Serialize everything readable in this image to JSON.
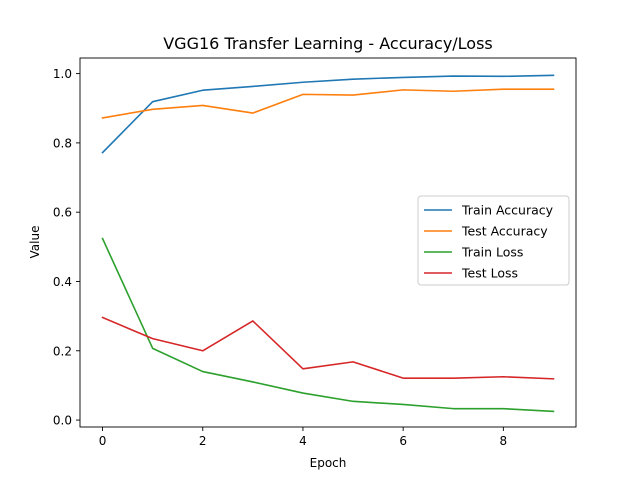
{
  "chart_data": {
    "type": "line",
    "title": "VGG16 Transfer Learning - Accuracy/Loss",
    "xlabel": "Epoch",
    "ylabel": "Value",
    "x": [
      0,
      1,
      2,
      3,
      4,
      5,
      6,
      7,
      8,
      9
    ],
    "xlim": [
      -0.45,
      9.45
    ],
    "ylim": [
      -0.02,
      1.045
    ],
    "xticks": [
      0,
      2,
      4,
      6,
      8
    ],
    "yticks": [
      0.0,
      0.2,
      0.4,
      0.6,
      0.8,
      1.0
    ],
    "xtick_labels": [
      "0",
      "2",
      "4",
      "6",
      "8"
    ],
    "ytick_labels": [
      "0.0",
      "0.2",
      "0.4",
      "0.6",
      "0.8",
      "1.0"
    ],
    "grid": false,
    "legend_position": "center-right",
    "series": [
      {
        "name": "Train Accuracy",
        "color": "#1f77b4",
        "values": [
          0.772,
          0.919,
          0.952,
          0.963,
          0.975,
          0.984,
          0.989,
          0.993,
          0.992,
          0.995
        ]
      },
      {
        "name": "Test Accuracy",
        "color": "#ff7f0e",
        "values": [
          0.872,
          0.897,
          0.908,
          0.886,
          0.94,
          0.938,
          0.953,
          0.949,
          0.955,
          0.955
        ]
      },
      {
        "name": "Train Loss",
        "color": "#2ca02c",
        "values": [
          0.524,
          0.207,
          0.14,
          0.11,
          0.078,
          0.054,
          0.045,
          0.033,
          0.033,
          0.025
        ]
      },
      {
        "name": "Test Loss",
        "color": "#d62728",
        "values": [
          0.296,
          0.235,
          0.2,
          0.286,
          0.148,
          0.168,
          0.121,
          0.121,
          0.125,
          0.119
        ]
      }
    ]
  }
}
